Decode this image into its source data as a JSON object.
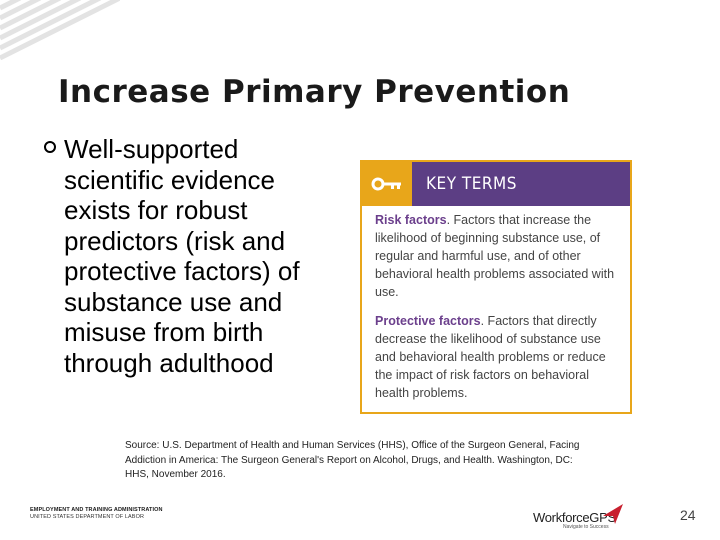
{
  "slide": {
    "title": "Increase Primary Prevention",
    "bullet": "Well-supported scientific evidence exists for robust predictors (risk and protective factors) of substance use and misuse from birth through adulthood"
  },
  "key_terms": {
    "header": "KEY TERMS",
    "risk_term": "Risk factors",
    "risk_definition": ". Factors that increase the likelihood of beginning substance use, of regular and harmful use, and of other behavioral health problems associated with use.",
    "protective_term": "Protective factors",
    "protective_definition": ". Factors that directly decrease the likelihood of substance use and behavioral health problems or reduce the impact of risk factors on behavioral health problems."
  },
  "source": "Source: U.S. Department of Health and Human Services (HHS), Office of the Surgeon General, Facing Addiction in America: The Surgeon General's Report on Alcohol, Drugs, and Health. Washington, DC: HHS, November 2016.",
  "footer": {
    "eta_line1": "EMPLOYMENT AND TRAINING ADMINISTRATION",
    "eta_line2": "UNITED STATES DEPARTMENT OF LABOR",
    "logo_text": "WorkforceGPS",
    "logo_subtext": "Navigate to Success",
    "page_number": "24"
  },
  "colors": {
    "header_purple": "#5c3e84",
    "key_gold": "#e8a61a",
    "term_purple": "#6b3f8c"
  }
}
